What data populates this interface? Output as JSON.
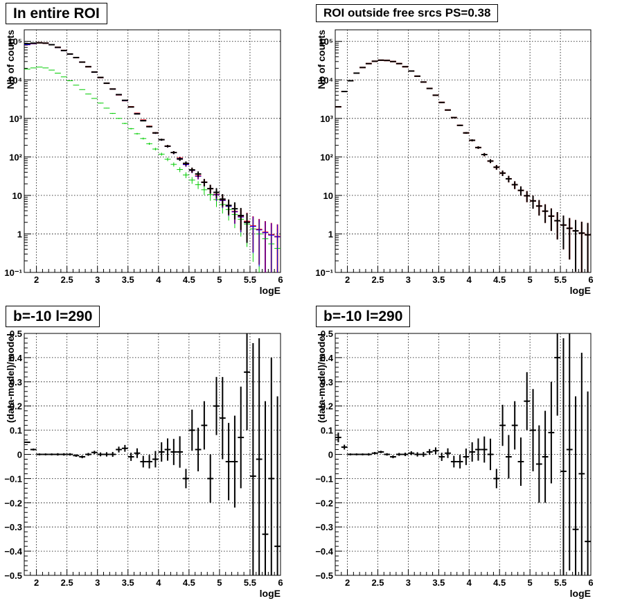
{
  "panels": [
    {
      "title": "In entire ROI",
      "chart_data": {
        "type": "scatter",
        "yscale": "log",
        "xlim": [
          1.8,
          6.0
        ],
        "ylim": [
          0.1,
          200000
        ],
        "grid": true,
        "xlabel": "logE",
        "ylabel": "Nb of counts",
        "x_ticks": [
          "2",
          "2.5",
          "3",
          "3.5",
          "4",
          "4.5",
          "5",
          "5.5",
          "6"
        ],
        "y_ticks": [
          "10⁻¹",
          "1",
          "10",
          "10²",
          "10³",
          "10⁴",
          "10⁵"
        ],
        "series": [
          {
            "color": "#ff0000",
            "marker": "errorbar",
            "x": [
              1.85,
              1.95,
              2.05,
              2.15,
              2.25,
              2.35,
              2.45,
              2.55,
              2.65,
              2.75,
              2.85,
              2.95,
              3.05,
              3.15,
              3.25,
              3.35,
              3.45,
              3.55,
              3.65,
              3.75,
              3.85,
              3.95,
              4.05,
              4.15,
              4.25,
              4.35,
              4.45,
              4.55,
              4.65,
              4.75,
              4.85,
              4.95,
              5.05,
              5.15,
              5.25,
              5.35,
              5.45,
              5.55,
              5.65,
              5.75,
              5.85,
              5.95
            ],
            "y": [
              83000,
              88000,
              92000,
              90000,
              82000,
              70000,
              58000,
              47000,
              38000,
              29000,
              22000,
              16000,
              11500,
              8200,
              5800,
              4100,
              2900,
              2000,
              1350,
              900,
              620,
              420,
              280,
              190,
              130,
              92,
              64,
              45,
              32,
              22,
              15,
              10.5,
              7.5,
              5.3,
              3.8,
              2.8,
              2.1,
              1.6,
              1.3,
              1.1,
              0.95,
              0.85
            ]
          },
          {
            "color": "#00cc00",
            "marker": "errorbar",
            "x": [
              1.85,
              1.95,
              2.05,
              2.15,
              2.25,
              2.35,
              2.45,
              2.55,
              2.65,
              2.75,
              2.85,
              2.95,
              3.05,
              3.15,
              3.25,
              3.35,
              3.45,
              3.55,
              3.65,
              3.75,
              3.85,
              3.95,
              4.05,
              4.15,
              4.25,
              4.35,
              4.45,
              4.55,
              4.65,
              4.75,
              4.85,
              4.95,
              5.05,
              5.15,
              5.25,
              5.35,
              5.45,
              5.55,
              5.65,
              5.75,
              5.85,
              5.95
            ],
            "y": [
              19000,
              20500,
              21500,
              20500,
              18000,
              15000,
              12000,
              9500,
              7300,
              5600,
              4300,
              3300,
              2500,
              1850,
              1350,
              1000,
              740,
              540,
              400,
              300,
              220,
              160,
              118,
              87,
              64,
              47,
              34,
              25,
              19,
              14,
              10.5,
              7.8,
              5.8,
              4.3,
              3.2,
              2.4,
              1.8,
              1.35,
              1.0,
              0.75,
              0.55,
              0.42
            ]
          },
          {
            "color": "#0000ff",
            "marker": "errorbar",
            "x": [
              1.85,
              1.95,
              2.05,
              2.15,
              2.25,
              2.35,
              2.45,
              2.55,
              2.65,
              2.75,
              2.85,
              2.95,
              3.05,
              3.15,
              3.25,
              3.35,
              3.45,
              3.55,
              3.65,
              3.75,
              3.85,
              3.95,
              4.05,
              4.15,
              4.25,
              4.35,
              4.45,
              4.55,
              4.65,
              4.75,
              4.85,
              4.95,
              5.05,
              5.15,
              5.25,
              5.35,
              5.45,
              5.55,
              5.65,
              5.75,
              5.85,
              5.95
            ],
            "y": [
              82000,
              87000,
              91000,
              89000,
              81000,
              69000,
              57000,
              46500,
              37500,
              28700,
              21800,
              15800,
              11400,
              8100,
              5750,
              4050,
              2870,
              1980,
              1340,
              890,
              615,
              415,
              277,
              188,
              128,
              91,
              63,
              44.5,
              31.5,
              21.8,
              14.9,
              10.4,
              7.4,
              5.2,
              3.75,
              2.75,
              2.05,
              1.57,
              1.27,
              1.08,
              0.93,
              0.84
            ]
          },
          {
            "color": "#000000",
            "marker": "errorbar",
            "x": [
              1.85,
              1.95,
              2.05,
              2.15,
              2.25,
              2.35,
              2.45,
              2.55,
              2.65,
              2.75,
              2.85,
              2.95,
              3.05,
              3.15,
              3.25,
              3.35,
              3.45,
              3.55,
              3.65,
              3.75,
              3.85,
              3.95,
              4.05,
              4.15,
              4.25,
              4.35,
              4.45,
              4.55,
              4.65,
              4.75,
              4.85,
              4.95,
              5.05,
              5.15,
              5.25,
              5.35,
              5.45
            ],
            "y": [
              87000,
              90000,
              92000,
              90000,
              82000,
              70000,
              58000,
              47000,
              38000,
              29000,
              22000,
              16000,
              11600,
              8200,
              5800,
              4150,
              2950,
              1980,
              1310,
              870,
              610,
              420,
              280,
              190,
              130,
              88,
              68,
              46,
              36,
              22,
              15,
              12,
              8,
              5.5,
              4.5,
              3,
              2
            ]
          }
        ]
      }
    },
    {
      "title": "ROI outside free srcs PS=0.38",
      "chart_data": {
        "type": "scatter",
        "yscale": "log",
        "xlim": [
          1.8,
          6.0
        ],
        "ylim": [
          0.1,
          200000
        ],
        "grid": true,
        "xlabel": "logE",
        "ylabel": "Nb of counts",
        "x_ticks": [
          "2",
          "2.5",
          "3",
          "3.5",
          "4",
          "4.5",
          "5",
          "5.5",
          "6"
        ],
        "y_ticks": [
          "10⁻¹",
          "1",
          "10",
          "10²",
          "10³",
          "10⁴",
          "10⁵"
        ],
        "series": [
          {
            "color": "#ff0000",
            "marker": "errorbar",
            "x": [
              1.85,
              1.95,
              2.05,
              2.15,
              2.25,
              2.35,
              2.45,
              2.55,
              2.65,
              2.75,
              2.85,
              2.95,
              3.05,
              3.15,
              3.25,
              3.35,
              3.45,
              3.55,
              3.65,
              3.75,
              3.85,
              3.95,
              4.05,
              4.15,
              4.25,
              4.35,
              4.45,
              4.55,
              4.65,
              4.75,
              4.85,
              4.95,
              5.05,
              5.15,
              5.25,
              5.35,
              5.45,
              5.55,
              5.65,
              5.75,
              5.85,
              5.95
            ],
            "y": [
              2000,
              5000,
              9500,
              15000,
              21000,
              26500,
              30500,
              32500,
              32000,
              30000,
              26500,
              22000,
              17000,
              12500,
              8800,
              6000,
              4000,
              2600,
              1650,
              1050,
              660,
              420,
              270,
              175,
              115,
              78,
              54,
              38,
              27,
              19,
              13.5,
              9.8,
              7.2,
              5.3,
              3.9,
              2.9,
              2.2,
              1.7,
              1.4,
              1.2,
              1.05,
              0.95
            ]
          },
          {
            "color": "#000000",
            "marker": "errorbar",
            "x": [
              1.85,
              1.95,
              2.05,
              2.15,
              2.25,
              2.35,
              2.45,
              2.55,
              2.65,
              2.75,
              2.85,
              2.95,
              3.05,
              3.15,
              3.25,
              3.35,
              3.45,
              3.55,
              3.65,
              3.75,
              3.85,
              3.95,
              4.05,
              4.15,
              4.25,
              4.35,
              4.45,
              4.55,
              4.65,
              4.75,
              4.85,
              4.95,
              5.05,
              5.15,
              5.25,
              5.35,
              5.45,
              5.55,
              5.65,
              5.75,
              5.85,
              5.95
            ],
            "y": [
              2000,
              5000,
              9500,
              15000,
              21000,
              26500,
              30500,
              32500,
              32000,
              30000,
              26500,
              22000,
              17000,
              12500,
              8800,
              6000,
              4000,
              2600,
              1650,
              1050,
              660,
              420,
              270,
              175,
              115,
              78,
              54,
              38,
              27,
              19,
              13.5,
              9.8,
              7.2,
              5.3,
              3.9,
              2.9,
              2.2,
              1.7,
              1.4,
              1.2,
              1.05,
              0.95
            ]
          }
        ]
      }
    },
    {
      "title": "b=-10 l=290",
      "chart_data": {
        "type": "scatter",
        "xlim": [
          1.8,
          6.0
        ],
        "ylim": [
          -0.5,
          0.5
        ],
        "grid": true,
        "xlabel": "logE",
        "ylabel": "(data-model)/model",
        "x_ticks": [
          "2",
          "2.5",
          "3",
          "3.5",
          "4",
          "4.5",
          "5",
          "5.5",
          "6"
        ],
        "y_ticks": [
          "−0.5",
          "−0.4",
          "−0.3",
          "−0.2",
          "−0.1",
          "0",
          "0.1",
          "0.2",
          "0.3",
          "0.4",
          "0.5"
        ],
        "series": [
          {
            "color": "#000000",
            "marker": "errorbar",
            "x": [
              1.85,
              1.95,
              2.05,
              2.15,
              2.25,
              2.35,
              2.45,
              2.55,
              2.65,
              2.75,
              2.85,
              2.95,
              3.05,
              3.15,
              3.25,
              3.35,
              3.45,
              3.55,
              3.65,
              3.75,
              3.85,
              3.95,
              4.05,
              4.15,
              4.25,
              4.35,
              4.45,
              4.55,
              4.65,
              4.75,
              4.85,
              4.95,
              5.05,
              5.15,
              5.25,
              5.35,
              5.45,
              5.55,
              5.65,
              5.75,
              5.85,
              5.95
            ],
            "y": [
              0.05,
              0.02,
              0.0,
              0.0,
              0.0,
              0.0,
              0.0,
              0.0,
              -0.005,
              -0.01,
              0.0,
              0.008,
              0.0,
              0.0,
              0.0,
              0.02,
              0.025,
              -0.01,
              0.005,
              -0.03,
              -0.03,
              -0.02,
              0.01,
              0.02,
              0.01,
              0.01,
              -0.1,
              0.1,
              0.02,
              0.12,
              -0.1,
              0.2,
              0.15,
              -0.03,
              -0.03,
              0.07,
              0.34,
              -0.09,
              -0.02,
              -0.33,
              -0.1,
              -0.38
            ],
            "yerr": [
              0.003,
              0.004,
              0.004,
              0.004,
              0.004,
              0.005,
              0.005,
              0.005,
              0.005,
              0.006,
              0.006,
              0.007,
              0.008,
              0.009,
              0.01,
              0.012,
              0.014,
              0.017,
              0.02,
              0.024,
              0.028,
              0.034,
              0.04,
              0.046,
              0.054,
              0.065,
              0.04,
              0.085,
              0.09,
              0.1,
              0.1,
              0.12,
              0.17,
              0.16,
              0.19,
              0.21,
              0.24,
              0.55,
              0.5,
              0.55,
              0.5,
              0.62
            ]
          }
        ]
      }
    },
    {
      "title": "b=-10 l=290",
      "chart_data": {
        "type": "scatter",
        "xlim": [
          1.8,
          6.0
        ],
        "ylim": [
          -0.5,
          0.5
        ],
        "grid": true,
        "xlabel": "logE",
        "ylabel": "(data-model)/model",
        "x_ticks": [
          "2",
          "2.5",
          "3",
          "3.5",
          "4",
          "4.5",
          "5",
          "5.5",
          "6"
        ],
        "y_ticks": [
          "−0.5",
          "−0.4",
          "−0.3",
          "−0.2",
          "−0.1",
          "0",
          "0.1",
          "0.2",
          "0.3",
          "0.4",
          "0.5"
        ],
        "series": [
          {
            "color": "#000000",
            "marker": "errorbar",
            "x": [
              1.85,
              1.95,
              2.05,
              2.15,
              2.25,
              2.35,
              2.45,
              2.55,
              2.65,
              2.75,
              2.85,
              2.95,
              3.05,
              3.15,
              3.25,
              3.35,
              3.45,
              3.55,
              3.65,
              3.75,
              3.85,
              3.95,
              4.05,
              4.15,
              4.25,
              4.35,
              4.45,
              4.55,
              4.65,
              4.75,
              4.85,
              4.95,
              5.05,
              5.15,
              5.25,
              5.35,
              5.45,
              5.55,
              5.65,
              5.75,
              5.85,
              5.95
            ],
            "y": [
              0.07,
              0.03,
              0.0,
              0.0,
              0.0,
              0.0,
              0.005,
              0.01,
              0.0,
              -0.01,
              0.0,
              0.0,
              0.005,
              0.0,
              0.0,
              0.01,
              0.015,
              -0.01,
              0.005,
              -0.03,
              -0.03,
              -0.01,
              0.01,
              0.02,
              0.02,
              0.0,
              -0.1,
              0.12,
              -0.01,
              0.12,
              -0.03,
              0.22,
              0.1,
              -0.04,
              -0.01,
              0.09,
              0.4,
              -0.07,
              0.02,
              -0.31,
              -0.08,
              -0.36
            ],
            "yerr": [
              0.02,
              0.01,
              0.004,
              0.004,
              0.004,
              0.005,
              0.005,
              0.005,
              0.005,
              0.006,
              0.006,
              0.007,
              0.008,
              0.009,
              0.01,
              0.012,
              0.014,
              0.017,
              0.02,
              0.024,
              0.028,
              0.034,
              0.04,
              0.046,
              0.054,
              0.065,
              0.04,
              0.085,
              0.09,
              0.1,
              0.1,
              0.12,
              0.17,
              0.16,
              0.19,
              0.21,
              0.24,
              0.55,
              0.5,
              0.55,
              0.5,
              0.62
            ]
          }
        ]
      }
    }
  ]
}
